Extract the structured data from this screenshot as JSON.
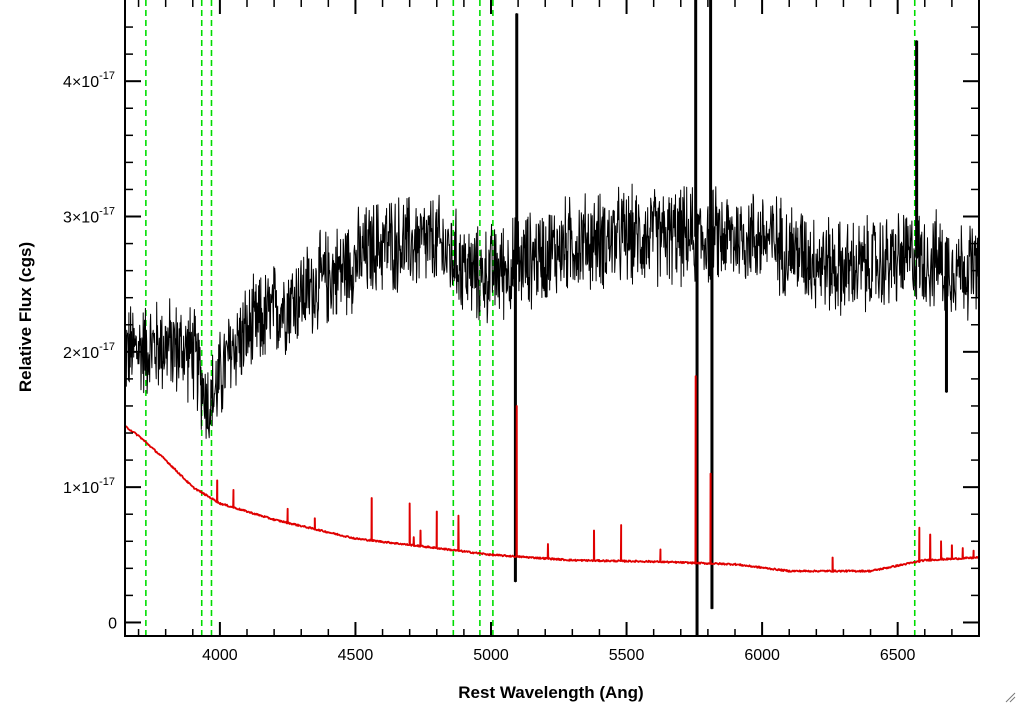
{
  "chart_data": {
    "type": "line",
    "title": "",
    "xlabel": "Rest Wavelength (Ang)",
    "ylabel": "Relative Flux (cgs)",
    "xlim": [
      3650,
      6800
    ],
    "ylim": [
      -1e-18,
      4.6e-17
    ],
    "x_ticks": [
      4000,
      4500,
      5000,
      5500,
      6000,
      6500
    ],
    "x_tick_labels": [
      "4000",
      "4500",
      "5000",
      "5500",
      "6000",
      "6500"
    ],
    "y_ticks": [
      0,
      1e-17,
      2e-17,
      3e-17,
      4e-17
    ],
    "y_tick_labels": [
      {
        "mantissa": "0",
        "exponent": ""
      },
      {
        "mantissa": "1×10",
        "exponent": "-17"
      },
      {
        "mantissa": "2×10",
        "exponent": "-17"
      },
      {
        "mantissa": "3×10",
        "exponent": "-17"
      },
      {
        "mantissa": "4×10",
        "exponent": "-17"
      }
    ],
    "grid": false,
    "series": [
      {
        "color": "#000000",
        "style": "noisy-spectrum",
        "continuum": [
          [
            3650,
            2e-17
          ],
          [
            3800,
            2.05e-17
          ],
          [
            3900,
            2e-17
          ],
          [
            3960,
            1.6e-17
          ],
          [
            4050,
            2.05e-17
          ],
          [
            4200,
            2.3e-17
          ],
          [
            4400,
            2.55e-17
          ],
          [
            4600,
            2.8e-17
          ],
          [
            4800,
            2.8e-17
          ],
          [
            4950,
            2.55e-17
          ],
          [
            5100,
            2.65e-17
          ],
          [
            5300,
            2.8e-17
          ],
          [
            5500,
            2.85e-17
          ],
          [
            6000,
            2.85e-17
          ],
          [
            6300,
            2.6e-17
          ],
          [
            6560,
            2.7e-17
          ],
          [
            6800,
            2.6e-17
          ]
        ],
        "noise_amplitude": 3e-18,
        "spikes": [
          {
            "x": 5095,
            "y": 4.5e-17
          },
          {
            "x": 5090,
            "y": 3e-18
          },
          {
            "x": 5755,
            "y": 4.6e-17
          },
          {
            "x": 5760,
            "y": -1e-18
          },
          {
            "x": 5810,
            "y": 4.6e-17
          },
          {
            "x": 5815,
            "y": 1e-18
          },
          {
            "x": 6570,
            "y": 4.3e-17
          },
          {
            "x": 6680,
            "y": 1.7e-17
          }
        ]
      },
      {
        "color": "#e00000",
        "style": "model",
        "continuum": [
          [
            3650,
            1.45e-17
          ],
          [
            3700,
            1.38e-17
          ],
          [
            3800,
            1.2e-17
          ],
          [
            3900,
            1e-17
          ],
          [
            4000,
            8.8e-18
          ],
          [
            4200,
            7.6e-18
          ],
          [
            4500,
            6.2e-18
          ],
          [
            4800,
            5.5e-18
          ],
          [
            5000,
            5e-18
          ],
          [
            5300,
            4.6e-18
          ],
          [
            5600,
            4.5e-18
          ],
          [
            5900,
            4.3e-18
          ],
          [
            6100,
            3.8e-18
          ],
          [
            6400,
            3.8e-18
          ],
          [
            6600,
            4.6e-18
          ],
          [
            6800,
            4.8e-18
          ]
        ],
        "lines": [
          {
            "x": 3990,
            "y": 1.05e-17
          },
          {
            "x": 4050,
            "y": 9.8e-18
          },
          {
            "x": 4250,
            "y": 8.4e-18
          },
          {
            "x": 4350,
            "y": 7.7e-18
          },
          {
            "x": 4560,
            "y": 9.2e-18
          },
          {
            "x": 4700,
            "y": 8.8e-18
          },
          {
            "x": 4715,
            "y": 6.3e-18
          },
          {
            "x": 4740,
            "y": 6.8e-18
          },
          {
            "x": 4800,
            "y": 8.2e-18
          },
          {
            "x": 4880,
            "y": 7.9e-18
          },
          {
            "x": 5095,
            "y": 1.6e-17
          },
          {
            "x": 5210,
            "y": 5.8e-18
          },
          {
            "x": 5380,
            "y": 6.8e-18
          },
          {
            "x": 5480,
            "y": 7.2e-18
          },
          {
            "x": 5625,
            "y": 5.4e-18
          },
          {
            "x": 5755,
            "y": 1.82e-17
          },
          {
            "x": 5810,
            "y": 1.1e-17
          },
          {
            "x": 6260,
            "y": 4.8e-18
          },
          {
            "x": 6580,
            "y": 7e-18
          },
          {
            "x": 6620,
            "y": 6.5e-18
          },
          {
            "x": 6660,
            "y": 6e-18
          },
          {
            "x": 6700,
            "y": 5.7e-18
          },
          {
            "x": 6740,
            "y": 5.5e-18
          },
          {
            "x": 6780,
            "y": 5.3e-18
          }
        ]
      }
    ],
    "vlines": {
      "color": "#00dd00",
      "style": "dashed",
      "x": [
        3727,
        3933,
        3969,
        4861,
        4959,
        5007,
        6563
      ]
    }
  }
}
